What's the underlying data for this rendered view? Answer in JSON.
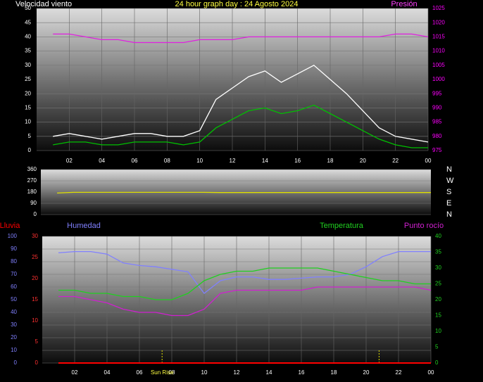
{
  "chart_data": [
    {
      "type": "line",
      "title": "24 hour graph day : 24 Agosto 2024",
      "ylabel": "Velocidad viento",
      "y2label": "Presión",
      "x": [
        1,
        2,
        3,
        4,
        5,
        6,
        7,
        8,
        9,
        10,
        11,
        12,
        13,
        14,
        15,
        16,
        17,
        18,
        19,
        20,
        21,
        22,
        23,
        24
      ],
      "xlim": [
        0,
        24
      ],
      "xticks": [
        {
          "value": 2,
          "label": "02"
        },
        {
          "value": 4,
          "label": "04"
        },
        {
          "value": 6,
          "label": "06"
        },
        {
          "value": 8,
          "label": "08"
        },
        10,
        12,
        14,
        16,
        18,
        20,
        22,
        {
          "value": 24,
          "label": "00"
        }
      ],
      "ylim": [
        0,
        50
      ],
      "yticks": [
        0,
        5,
        10,
        15,
        20,
        25,
        30,
        35,
        40,
        45,
        50
      ],
      "ytick_color": "#ffffff",
      "y2lim": [
        975,
        1025
      ],
      "y2ticks": [
        975,
        980,
        985,
        990,
        995,
        1000,
        1005,
        1010,
        1015,
        1020,
        1025
      ],
      "y2tick_color": "#ff00ff",
      "grid": true,
      "series": [
        {
          "color": "#ffffff",
          "values": [
            5,
            6,
            5,
            4,
            5,
            6,
            6,
            5,
            5,
            7,
            18,
            22,
            26,
            28,
            24,
            27,
            30,
            25,
            20,
            14,
            8,
            5,
            4,
            3
          ]
        },
        {
          "color": "#00c000",
          "values": [
            2,
            3,
            3,
            2,
            2,
            3,
            3,
            3,
            2,
            3,
            8,
            11,
            14,
            15,
            13,
            14,
            16,
            13,
            10,
            7,
            4,
            2,
            1,
            1
          ]
        },
        {
          "color": "#e020e0",
          "axis": "y2",
          "values": [
            1016,
            1016,
            1015,
            1014,
            1014,
            1013,
            1013,
            1013,
            1013,
            1014,
            1014,
            1014,
            1015,
            1015,
            1015,
            1015,
            1015,
            1015,
            1015,
            1015,
            1015,
            1016,
            1016,
            1015
          ]
        }
      ]
    },
    {
      "type": "line",
      "x": [
        1,
        2,
        3,
        4,
        5,
        6,
        7,
        8,
        9,
        10,
        11,
        12,
        13,
        14,
        15,
        16,
        17,
        18,
        19,
        20,
        21,
        22,
        23,
        24
      ],
      "xlim": [
        0,
        24
      ],
      "ylim": [
        0,
        360
      ],
      "yticks": [
        0,
        90,
        180,
        270,
        360
      ],
      "ytick_color": "#ffffff",
      "y2lim": [
        0,
        360
      ],
      "y2ticks": [
        {
          "value": 360,
          "label": "N"
        },
        {
          "value": 270,
          "label": "W"
        },
        {
          "value": 180,
          "label": "S"
        },
        {
          "value": 90,
          "label": "E"
        },
        {
          "value": 0,
          "label": "N"
        }
      ],
      "y2tick_color": "#ffffff",
      "grid": true,
      "series": [
        {
          "color": "#e0e000",
          "values": [
            172,
            178,
            178,
            178,
            178,
            178,
            178,
            178,
            178,
            178,
            176,
            176,
            176,
            176,
            176,
            176,
            176,
            176,
            176,
            176,
            176,
            176,
            176,
            176
          ]
        }
      ]
    },
    {
      "type": "line",
      "x": [
        1,
        2,
        3,
        4,
        5,
        6,
        7,
        8,
        9,
        10,
        11,
        12,
        13,
        14,
        15,
        16,
        17,
        18,
        19,
        20,
        21,
        22,
        23,
        24
      ],
      "xlim": [
        0,
        24
      ],
      "xticks": [
        {
          "value": 2,
          "label": "02"
        },
        {
          "value": 4,
          "label": "04"
        },
        {
          "value": 6,
          "label": "06"
        },
        {
          "value": 8,
          "label": "08"
        },
        10,
        12,
        14,
        16,
        18,
        20,
        22,
        {
          "value": 24,
          "label": "00"
        }
      ],
      "ylim": [
        0,
        100
      ],
      "yticks": [
        0,
        10,
        20,
        30,
        40,
        50,
        60,
        70,
        80,
        90,
        100
      ],
      "ytick_color": "#8080ff",
      "y2lim": [
        0,
        40
      ],
      "y2ticks": [
        0,
        5,
        10,
        15,
        20,
        25,
        30,
        35,
        40
      ],
      "y2tick_color": "#20d020",
      "y3lim": [
        0,
        30
      ],
      "y3ticks": [
        0,
        5,
        10,
        15,
        20,
        25,
        30
      ],
      "y3tick_color": "#ff3030",
      "grid": true,
      "series": [
        {
          "name": "Lluvia",
          "color": "#ff0000",
          "axis": "y3",
          "values": [
            0,
            0,
            0,
            0,
            0,
            0,
            0,
            0,
            0,
            0,
            0,
            0,
            0,
            0,
            0,
            0,
            0,
            0,
            0,
            0,
            0,
            0,
            0,
            0
          ]
        },
        {
          "name": "Humedad",
          "color": "#8080ff",
          "values": [
            87,
            88,
            88,
            86,
            79,
            77,
            76,
            74,
            72,
            55,
            65,
            68,
            68,
            66,
            66,
            67,
            68,
            68,
            70,
            76,
            84,
            88,
            88,
            88
          ]
        },
        {
          "name": "Temperatura",
          "color": "#20d020",
          "axis": "y2",
          "values": [
            23,
            23,
            22,
            22,
            21,
            21,
            20,
            20,
            22,
            26,
            28,
            29,
            29,
            30,
            30,
            30,
            30,
            29,
            28,
            27,
            26,
            26,
            25,
            25
          ]
        },
        {
          "name": "Punto rocío",
          "color": "#d020d0",
          "axis": "y2",
          "values": [
            21,
            21,
            20,
            19,
            17,
            16,
            16,
            15,
            15,
            17,
            22,
            23,
            23,
            23,
            23,
            23,
            24,
            24,
            24,
            24,
            24,
            24,
            24,
            23
          ]
        }
      ],
      "markers": [
        7.4,
        20.8
      ],
      "annotations": [
        {
          "text": "Sun Rise",
          "x": 7.4
        }
      ]
    }
  ]
}
